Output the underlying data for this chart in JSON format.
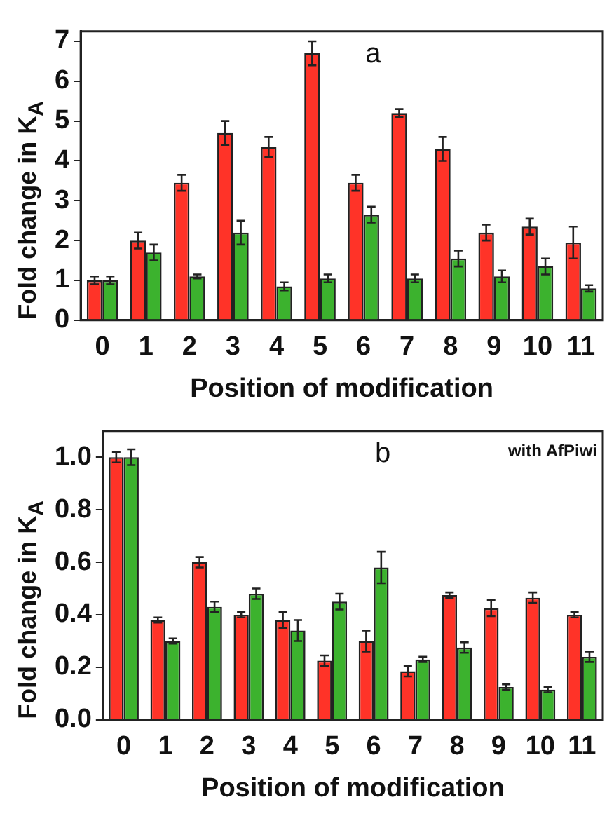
{
  "chart_data": [
    {
      "type": "bar",
      "ylabel": "Fold change in K$_{A}$",
      "xlabel": "Position of modification",
      "annotations": [
        "a"
      ],
      "categories": [
        "0",
        "1",
        "2",
        "3",
        "4",
        "5",
        "6",
        "7",
        "8",
        "9",
        "10",
        "11"
      ],
      "series": [
        {
          "color": "#ff3328",
          "values": [
            1.0,
            2.0,
            3.45,
            4.7,
            4.35,
            6.7,
            3.45,
            5.2,
            4.3,
            2.2,
            2.35,
            1.95
          ],
          "errors": [
            0.1,
            0.2,
            0.2,
            0.3,
            0.25,
            0.3,
            0.2,
            0.1,
            0.3,
            0.2,
            0.2,
            0.4
          ]
        },
        {
          "color": "#3cb22e",
          "values": [
            1.0,
            1.7,
            1.1,
            2.2,
            0.85,
            1.05,
            2.65,
            1.05,
            1.55,
            1.1,
            1.35,
            0.8
          ],
          "errors": [
            0.1,
            0.2,
            0.05,
            0.3,
            0.1,
            0.1,
            0.2,
            0.1,
            0.2,
            0.15,
            0.2,
            0.08
          ]
        }
      ],
      "ylim": [
        0,
        7.25
      ],
      "yticks": [
        0,
        1,
        2,
        3,
        4,
        5,
        6,
        7
      ],
      "grid": false,
      "legend": false
    },
    {
      "type": "bar",
      "ylabel": "Fold change in K$_{A}$",
      "xlabel": "Position of modification",
      "annotations": [
        "b",
        "with AfPiwi"
      ],
      "categories": [
        "0",
        "1",
        "2",
        "3",
        "4",
        "5",
        "6",
        "7",
        "8",
        "9",
        "10",
        "11"
      ],
      "series": [
        {
          "color": "#ff3328",
          "values": [
            1.0,
            0.38,
            0.6,
            0.4,
            0.38,
            0.225,
            0.3,
            0.185,
            0.475,
            0.425,
            0.465,
            0.4
          ],
          "errors": [
            0.02,
            0.01,
            0.02,
            0.01,
            0.03,
            0.02,
            0.04,
            0.02,
            0.01,
            0.03,
            0.02,
            0.01
          ]
        },
        {
          "color": "#3cb22e",
          "values": [
            1.0,
            0.3,
            0.43,
            0.48,
            0.34,
            0.45,
            0.58,
            0.23,
            0.275,
            0.125,
            0.115,
            0.24
          ],
          "errors": [
            0.03,
            0.01,
            0.02,
            0.02,
            0.04,
            0.03,
            0.06,
            0.01,
            0.02,
            0.01,
            0.01,
            0.02
          ]
        }
      ],
      "ylim": [
        0,
        1.1
      ],
      "yticks": [
        {
          "value": 0,
          "label": "0.0"
        },
        {
          "value": 0.2,
          "label": "0.2"
        },
        {
          "value": 0.4,
          "label": "0.4"
        },
        {
          "value": 0.6,
          "label": "0.6"
        },
        {
          "value": 0.8,
          "label": "0.8"
        },
        {
          "value": 1.0,
          "label": "1.0"
        }
      ],
      "grid": false,
      "legend": false
    }
  ]
}
